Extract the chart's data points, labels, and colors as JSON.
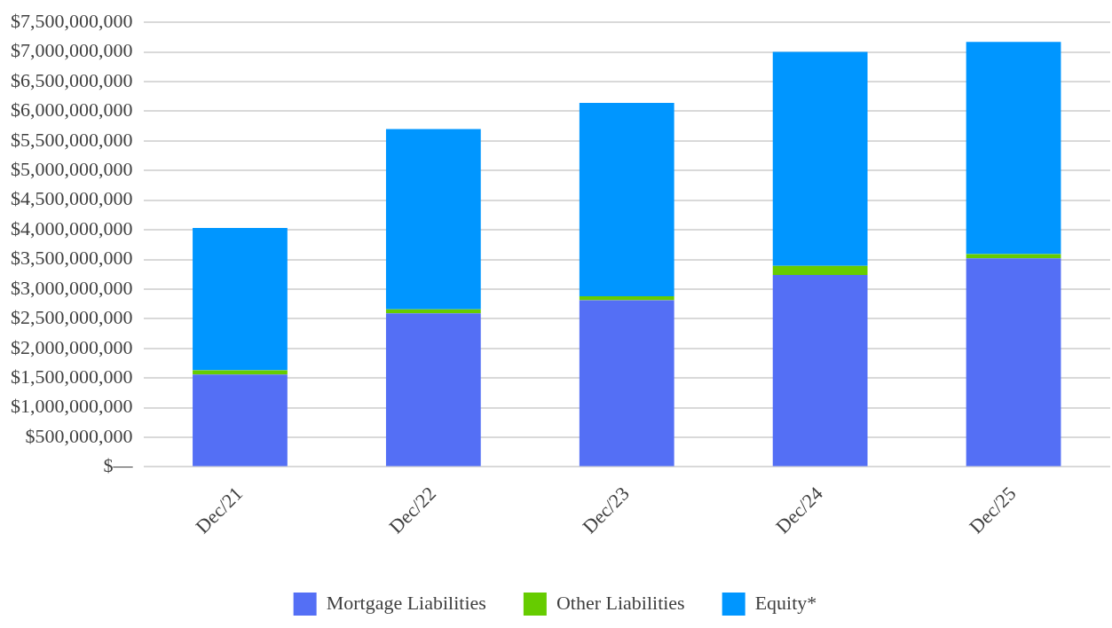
{
  "chart_data": {
    "type": "bar",
    "stacked": true,
    "categories": [
      "Dec/21",
      "Dec/22",
      "Dec/23",
      "Dec/24",
      "Dec/25"
    ],
    "series": [
      {
        "name": "Mortgage Liabilities",
        "color": "#546ff5",
        "values": [
          1560000000,
          2590000000,
          2810000000,
          3240000000,
          3520000000
        ]
      },
      {
        "name": "Other Liabilities",
        "color": "#66cc00",
        "values": [
          70000000,
          70000000,
          70000000,
          150000000,
          70000000
        ]
      },
      {
        "name": "Equity*",
        "color": "#0096ff",
        "values": [
          2400000000,
          3040000000,
          3260000000,
          3610000000,
          3580000000
        ]
      }
    ],
    "ylim": [
      0,
      7500000000
    ],
    "yticks": [
      {
        "value": 0,
        "label": "$—"
      },
      {
        "value": 500000000,
        "label": "$500,000,000"
      },
      {
        "value": 1000000000,
        "label": "$1,000,000,000"
      },
      {
        "value": 1500000000,
        "label": "$1,500,000,000"
      },
      {
        "value": 2000000000,
        "label": "$2,000,000,000"
      },
      {
        "value": 2500000000,
        "label": "$2,500,000,000"
      },
      {
        "value": 3000000000,
        "label": "$3,000,000,000"
      },
      {
        "value": 3500000000,
        "label": "$3,500,000,000"
      },
      {
        "value": 4000000000,
        "label": "$4,000,000,000"
      },
      {
        "value": 4500000000,
        "label": "$4,500,000,000"
      },
      {
        "value": 5000000000,
        "label": "$5,000,000,000"
      },
      {
        "value": 5500000000,
        "label": "$5,500,000,000"
      },
      {
        "value": 6000000000,
        "label": "$6,000,000,000"
      },
      {
        "value": 6500000000,
        "label": "$6,500,000,000"
      },
      {
        "value": 7000000000,
        "label": "$7,000,000,000"
      },
      {
        "value": 7500000000,
        "label": "$7,500,000,000"
      }
    ],
    "grid": "y",
    "legend": "bottom"
  }
}
